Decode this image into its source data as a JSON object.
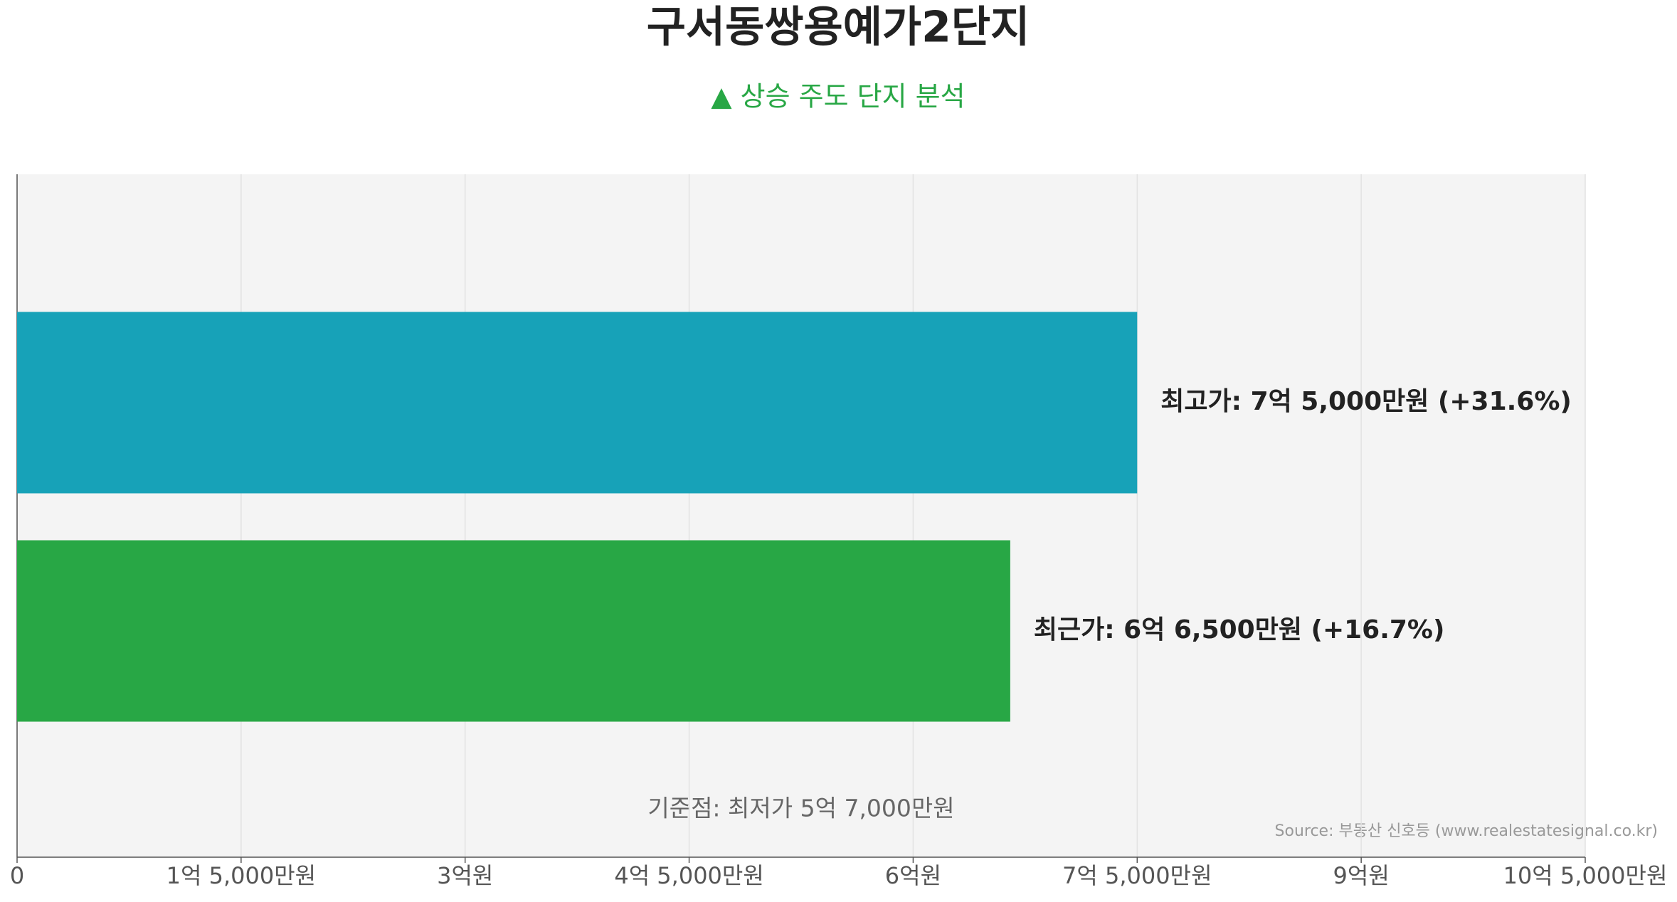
{
  "chart_data": {
    "type": "bar",
    "orientation": "horizontal",
    "title": "구서동쌍용예가2단지",
    "subtitle": "▲ 상승 주도 단지 분석",
    "values": [
      75000,
      66500
    ],
    "value_labels": [
      "최고가: 7억 5,000만원 (+31.6%)",
      "최근가: 6억 6,500만원 (+16.7%)"
    ],
    "colors": [
      "#17a2b8",
      "#28a745"
    ],
    "xlim": [
      0,
      105000
    ],
    "xticks": [
      0,
      {
        "value": 15000,
        "label": "1억 5,000만원"
      },
      {
        "value": 30000,
        "label": "3억원"
      },
      {
        "value": 45000,
        "label": "4억 5,000만원"
      },
      {
        "value": 60000,
        "label": "6억원"
      },
      {
        "value": 75000,
        "label": "7억 5,000만원"
      },
      {
        "value": 90000,
        "label": "9억원"
      },
      {
        "value": 105000,
        "label": "10억 5,000만원"
      }
    ],
    "grid": true,
    "annotations": [
      "기준점: 최저가 5억 7,000만원"
    ],
    "source": "Source: 부동산 신호등 (www.realestatesignal.co.kr)"
  }
}
